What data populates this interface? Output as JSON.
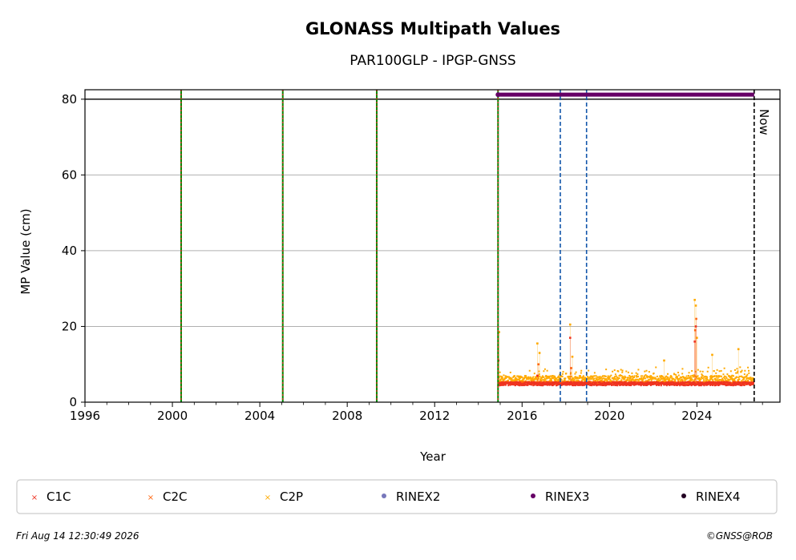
{
  "colors": {
    "C1C": "#ee3322",
    "C2C": "#ff6611",
    "C2P": "#ffaa00",
    "RINEX2": "#7777bb",
    "RINEX3": "#660066",
    "RINEX4": "#220022",
    "receiver_change": "#008800",
    "antenna_change": "#ee2222",
    "blue_event": "#1155aa",
    "now_line": "#000000",
    "grid": "#b0b0b0"
  },
  "footer": {
    "timestamp": "Fri Aug 14 12:30:49 2026",
    "credit": "©GNSS@ROB"
  },
  "chart_data": {
    "type": "scatter",
    "title": "GLONASS Multipath Values",
    "subtitle": "PAR100GLP - IPGP-GNSS",
    "xlabel": "Year",
    "ylabel": "MP Value (cm)",
    "xlim": [
      1996,
      2027.8
    ],
    "ylim": [
      0,
      82.5
    ],
    "xticks": [
      "1996",
      "2000",
      "2004",
      "2008",
      "2012",
      "2016",
      "2020",
      "2024"
    ],
    "yticks": [
      "0",
      "20",
      "40",
      "60",
      "80"
    ],
    "grid": "horizontal",
    "legend_position": "bottom",
    "legend": [
      "C1C",
      "C2C",
      "C2P",
      "RINEX2",
      "RINEX3",
      "RINEX4"
    ],
    "now_label": "Now",
    "now_x": 2026.62,
    "reference_line_y": 80,
    "event_lines": [
      {
        "x": 2000.4,
        "kind": "receiver_antenna"
      },
      {
        "x": 2005.05,
        "kind": "receiver_antenna"
      },
      {
        "x": 2009.35,
        "kind": "receiver_antenna"
      },
      {
        "x": 2014.9,
        "kind": "receiver_antenna"
      },
      {
        "x": 2017.75,
        "kind": "blue"
      },
      {
        "x": 2018.95,
        "kind": "blue"
      }
    ],
    "rinex_bars": [
      {
        "name": "RINEX3",
        "x_start": 2014.9,
        "x_end": 2026.62,
        "y": 81.2
      }
    ],
    "series": [
      {
        "name": "C1C",
        "x_start": 2014.9,
        "x_end": 2026.6,
        "baseline": 4.8,
        "spikes": [
          [
            2014.92,
            11
          ],
          [
            2016.7,
            7
          ],
          [
            2018.2,
            17
          ],
          [
            2023.9,
            16
          ],
          [
            2023.95,
            20
          ]
        ]
      },
      {
        "name": "C2C",
        "x_start": 2014.9,
        "x_end": 2026.6,
        "baseline": 5.0,
        "spikes": [
          [
            2016.75,
            10
          ],
          [
            2018.25,
            9
          ],
          [
            2023.92,
            19
          ],
          [
            2023.97,
            22
          ]
        ]
      },
      {
        "name": "C2P",
        "x_start": 2014.9,
        "x_end": 2026.6,
        "baseline": 6.0,
        "spikes": [
          [
            2014.95,
            18.5
          ],
          [
            2016.7,
            15.5
          ],
          [
            2016.8,
            13
          ],
          [
            2018.2,
            20.5
          ],
          [
            2018.3,
            12
          ],
          [
            2022.5,
            11
          ],
          [
            2023.9,
            27
          ],
          [
            2023.95,
            25.5
          ],
          [
            2024.0,
            17
          ],
          [
            2024.7,
            12.5
          ],
          [
            2025.9,
            14
          ]
        ]
      }
    ]
  }
}
